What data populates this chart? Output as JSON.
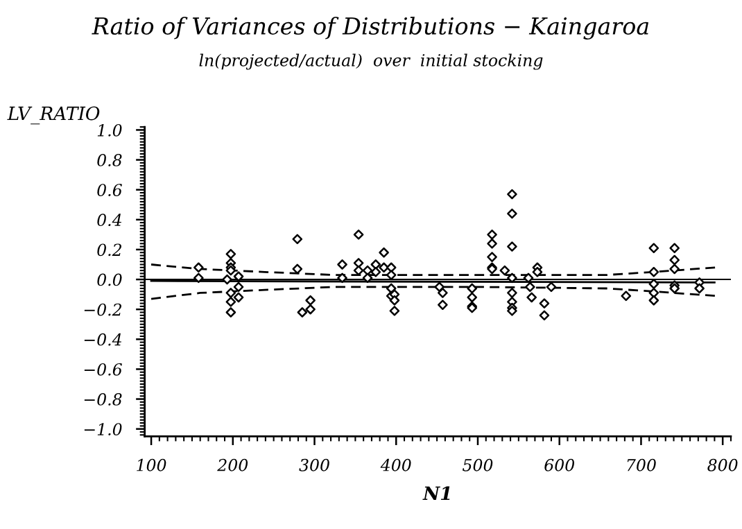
{
  "chart_data": {
    "type": "scatter",
    "title": "Ratio of Variances of Distributions − Kaingaroa",
    "subtitle": "ln(projected/actual)  over  initial stocking",
    "xlabel": "N1",
    "ylabel": "LV_RATIO",
    "xlim": [
      92,
      810
    ],
    "ylim": [
      -1.05,
      1.02
    ],
    "xticks": [
      100,
      200,
      300,
      400,
      500,
      600,
      700,
      800
    ],
    "yticks": [
      {
        "value": 1,
        "label": "1.0"
      },
      {
        "value": 0.8,
        "label": "0.8"
      },
      {
        "value": 0.6,
        "label": "0.6"
      },
      {
        "value": 0.4,
        "label": "0.4"
      },
      {
        "value": 0.2,
        "label": "0.2"
      },
      {
        "value": 0,
        "label": "0.0"
      },
      {
        "value": -0.2,
        "label": "−0.2"
      },
      {
        "value": -0.4,
        "label": "−0.4"
      },
      {
        "value": -0.6,
        "label": "−0.6"
      },
      {
        "value": -0.8,
        "label": "−0.8"
      },
      {
        "value": -1,
        "label": "−1.0"
      }
    ],
    "grid": false,
    "marker": "diamond",
    "ref_lines": [
      {
        "axis": "y",
        "value": 0,
        "color": "#000000",
        "line_style": "solid"
      }
    ],
    "series": [
      {
        "color": "#000000",
        "x": [
          158,
          158,
          197.5,
          197.5,
          197.5,
          197.5,
          193,
          197.5,
          197.5,
          197.5,
          207,
          207,
          207,
          279,
          279,
          285,
          295,
          295,
          334,
          334,
          354,
          354,
          354,
          365,
          365,
          375,
          375,
          385,
          385,
          394,
          394,
          394,
          394,
          398,
          398,
          398,
          453,
          457,
          457,
          493,
          493,
          493,
          493,
          517.5,
          517.5,
          517.5,
          517.5,
          517.5,
          533,
          542,
          542,
          542,
          542,
          542,
          542,
          542,
          542,
          562,
          564,
          566,
          573,
          573,
          581.5,
          581.5,
          590,
          681.6,
          715.6,
          715.6,
          715.6,
          715.6,
          715.6,
          741,
          741,
          741,
          741,
          741,
          771.5,
          771.5
        ],
        "values": [
          0.08,
          0.01,
          0.17,
          0.11,
          0.08,
          0.06,
          0.0,
          -0.09,
          -0.15,
          -0.22,
          0.02,
          -0.05,
          -0.12,
          0.27,
          0.07,
          -0.22,
          -0.14,
          -0.2,
          0.1,
          0.01,
          0.3,
          0.11,
          0.06,
          0.06,
          0.01,
          0.1,
          0.05,
          0.18,
          0.08,
          0.08,
          0.03,
          -0.06,
          -0.11,
          -0.1,
          -0.14,
          -0.21,
          -0.05,
          -0.09,
          -0.17,
          -0.06,
          -0.12,
          -0.18,
          -0.19,
          0.3,
          0.24,
          0.15,
          0.08,
          0.07,
          0.06,
          0.57,
          0.44,
          0.22,
          0.01,
          -0.09,
          -0.15,
          -0.19,
          -0.21,
          0.01,
          -0.05,
          -0.12,
          0.08,
          0.05,
          -0.16,
          -0.24,
          -0.05,
          -0.11,
          0.21,
          0.05,
          -0.03,
          -0.09,
          -0.14,
          0.21,
          0.13,
          0.07,
          -0.04,
          -0.06,
          -0.02,
          -0.06
        ]
      },
      {
        "type": "line",
        "color": "#000000",
        "line_style": "solid",
        "marker": "none",
        "x": [
          100,
          790
        ],
        "values": [
          -0.01,
          -0.02
        ]
      },
      {
        "type": "line",
        "color": "#000000",
        "line_style": "dashed",
        "marker": "none",
        "x": [
          100,
          160,
          239,
          324,
          500,
          658,
          715,
          791
        ],
        "values": [
          0.1,
          0.07,
          0.05,
          0.03,
          0.03,
          0.03,
          0.05,
          0.08
        ]
      },
      {
        "type": "line",
        "color": "#000000",
        "line_style": "dashed",
        "marker": "none",
        "x": [
          100,
          160,
          239,
          324,
          500,
          658,
          715,
          791
        ],
        "values": [
          -0.13,
          -0.09,
          -0.07,
          -0.05,
          -0.05,
          -0.06,
          -0.08,
          -0.11
        ]
      }
    ]
  }
}
